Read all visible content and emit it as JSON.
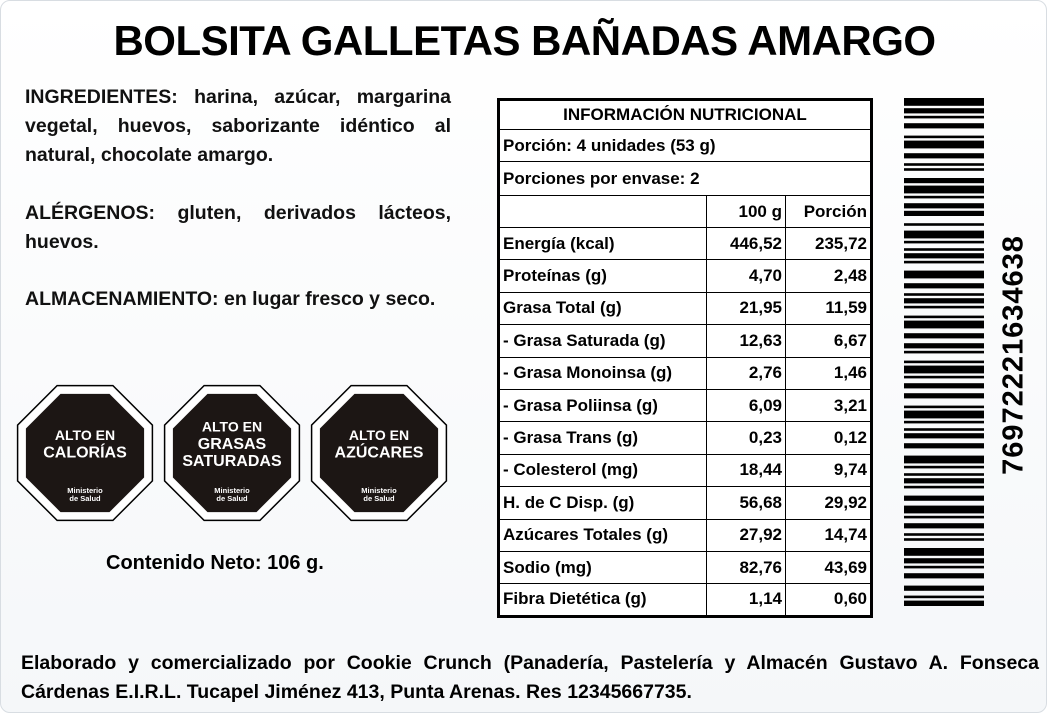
{
  "title": "BOLSITA GALLETAS BAÑADAS AMARGO",
  "ingredients": {
    "label": "INGREDIENTES:",
    "text": "harina, azúcar, margarina vegetal, huevos, saborizante idéntico al natural, chocolate amargo."
  },
  "allergens": {
    "label": "ALÉRGENOS:",
    "text": "gluten, derivados lácteos, huevos."
  },
  "storage": {
    "label": "ALMACENAMIENTO:",
    "text": "en lugar fresco y seco."
  },
  "seals": [
    {
      "lines": [
        "ALTO EN",
        "CALORÍAS"
      ],
      "ministry": [
        "Ministerio",
        "de Salud"
      ]
    },
    {
      "lines": [
        "ALTO EN",
        "GRASAS",
        "SATURADAS"
      ],
      "ministry": [
        "Ministerio",
        "de Salud"
      ]
    },
    {
      "lines": [
        "ALTO EN",
        "AZÚCARES"
      ],
      "ministry": [
        "Ministerio",
        "de Salud"
      ]
    }
  ],
  "net_content": "Contenido Neto: 106  g.",
  "nutrition": {
    "title": "INFORMACIÓN NUTRICIONAL",
    "portion": "Porción: 4 unidades (53 g)",
    "portions_per_pack": "Porciones por envase: 2",
    "columns": [
      "100 g",
      "Porción"
    ],
    "rows": [
      [
        "Energía (kcal)",
        "446,52",
        "235,72"
      ],
      [
        "Proteínas (g)",
        "4,70",
        "2,48"
      ],
      [
        "Grasa Total (g)",
        "21,95",
        "11,59"
      ],
      [
        "- Grasa Saturada (g)",
        "12,63",
        "6,67"
      ],
      [
        "- Grasa Monoinsa (g)",
        "2,76",
        "1,46"
      ],
      [
        "- Grasa Poliinsa (g)",
        "6,09",
        "3,21"
      ],
      [
        "- Grasa Trans (g)",
        "0,23",
        "0,12"
      ],
      [
        "- Colesterol (mg)",
        "18,44",
        "9,74"
      ],
      [
        "H. de C Disp. (g)",
        "56,68",
        "29,92"
      ],
      [
        "Azúcares Totales (g)",
        "27,92",
        "14,74"
      ],
      [
        "Sodio (mg)",
        "82,76",
        "43,69"
      ],
      [
        "Fibra Dietética (g)",
        "1,14",
        "0,60"
      ]
    ]
  },
  "barcode": "76972221634638",
  "footer": "Elaborado y comercializado por Cookie Crunch (Panadería, Pastelería y Almacén Gustavo A. Fonseca Cárdenas E.I.R.L. Tucapel Jiménez 413, Punta Arenas. Res 12345667735."
}
